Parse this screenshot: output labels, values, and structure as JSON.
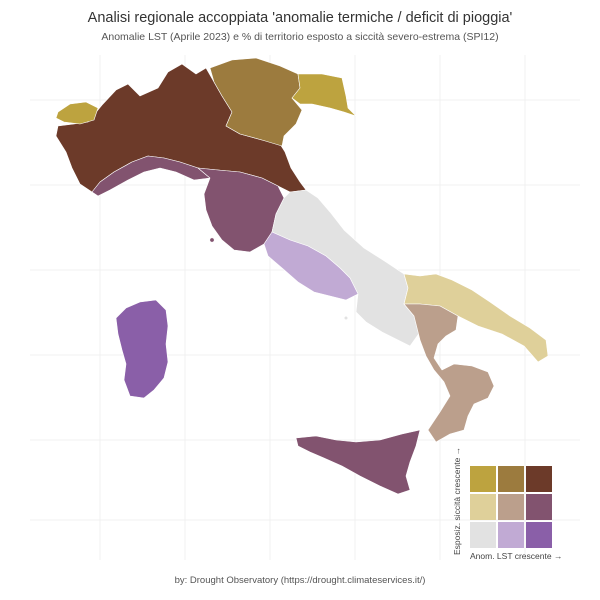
{
  "title": "Analisi regionale accoppiata 'anomalie termiche / deficit di pioggia'",
  "subtitle": "Anomalie LST (Aprile 2023) e % di territorio esposto a siccità severo-estrema (SPI12)",
  "caption": "by: Drought Observatory (https://drought.climateservices.it/)",
  "legend": {
    "y_label": "Esposiz. siccità crescente →",
    "x_label": "Anom. LST crescente →",
    "cells": [
      {
        "color": "#bda33f"
      },
      {
        "color": "#9c7b3e"
      },
      {
        "color": "#6c3a29"
      },
      {
        "color": "#dfd09a"
      },
      {
        "color": "#bb9f8c"
      },
      {
        "color": "#82536f"
      },
      {
        "color": "#e2e2e2"
      },
      {
        "color": "#c1aad4"
      },
      {
        "color": "#8a5fa8"
      }
    ]
  },
  "regions": [
    {
      "name": "valle-daosta",
      "color": "#bda33f"
    },
    {
      "name": "nord-ovest",
      "color": "#6c3a29"
    },
    {
      "name": "trentino-veneto",
      "color": "#9c7b3e"
    },
    {
      "name": "friuli-venezia-giulia",
      "color": "#bda33f"
    },
    {
      "name": "liguria",
      "color": "#82536f"
    },
    {
      "name": "toscana",
      "color": "#82536f"
    },
    {
      "name": "centro-adriatico",
      "color": "#e2e2e2"
    },
    {
      "name": "lazio",
      "color": "#c1aad4"
    },
    {
      "name": "puglia",
      "color": "#dfd09a"
    },
    {
      "name": "basilicata-calabria",
      "color": "#bb9f8c"
    },
    {
      "name": "sardegna",
      "color": "#8a5fa8"
    },
    {
      "name": "sicilia",
      "color": "#82536f"
    }
  ]
}
